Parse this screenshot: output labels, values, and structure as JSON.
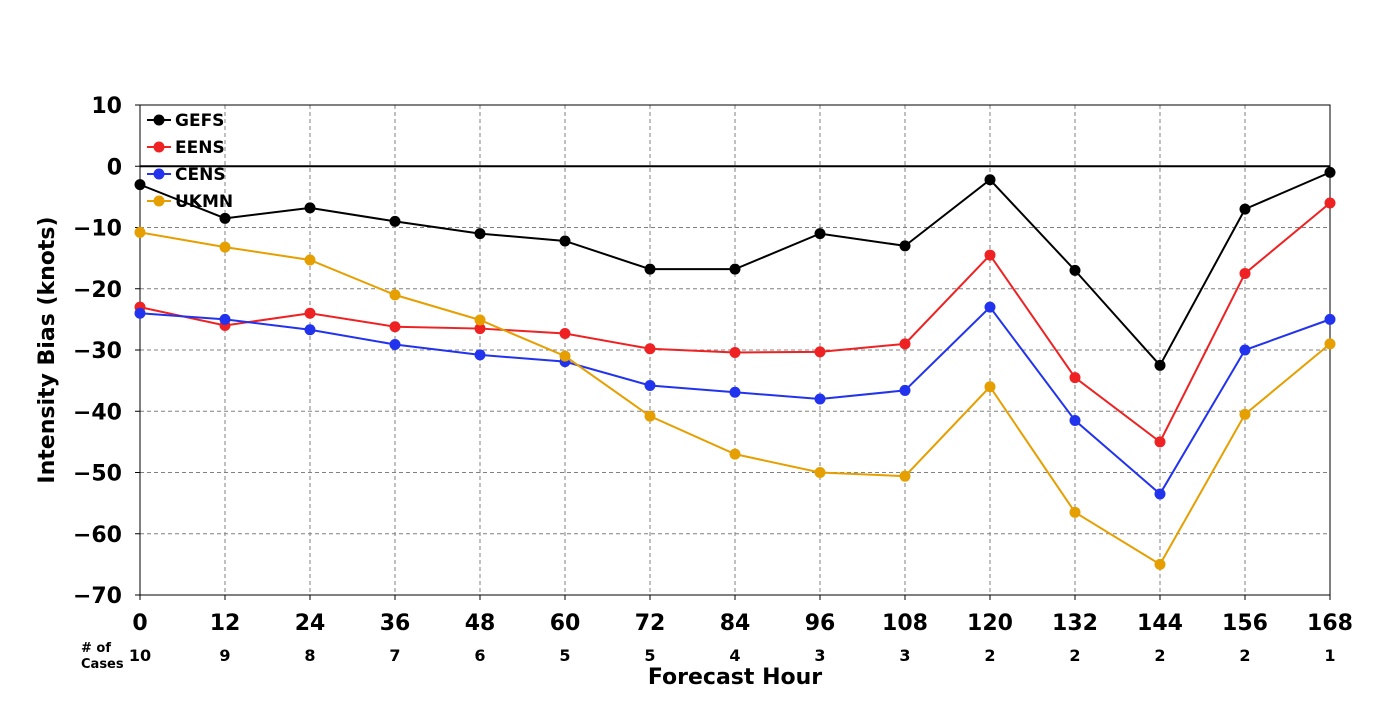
{
  "chart_data": {
    "type": "line",
    "xlabel": "Forecast Hour",
    "ylabel": "Intensity Bias (knots)",
    "x": [
      0,
      12,
      24,
      36,
      48,
      60,
      72,
      84,
      96,
      108,
      120,
      132,
      144,
      156,
      168
    ],
    "xlim": [
      0,
      168
    ],
    "ylim": [
      -70,
      10
    ],
    "yticks": [
      10,
      0,
      -10,
      -20,
      -30,
      -40,
      -50,
      -60,
      -70
    ],
    "ytick_labels": [
      "10",
      "0",
      "−10",
      "−20",
      "−30",
      "−40",
      "−50",
      "−60",
      "−70"
    ],
    "grid": true,
    "zero_line": true,
    "legend_position": "top-left",
    "cases_label_line1": "# of",
    "cases_label_line2": "Cases",
    "cases": [
      "10",
      "9",
      "8",
      "7",
      "6",
      "5",
      "5",
      "4",
      "3",
      "3",
      "2",
      "2",
      "2",
      "2",
      "1"
    ],
    "series": [
      {
        "name": "GEFS",
        "color": "#000000",
        "values": [
          -3,
          -8.5,
          -6.8,
          -9,
          -11,
          -12.2,
          -16.8,
          -16.8,
          -11,
          -13,
          -2.2,
          -17,
          -32.5,
          -7,
          -1
        ]
      },
      {
        "name": "EENS",
        "color": "#ee2222",
        "values": [
          -23,
          -26,
          -24,
          -26.2,
          -26.5,
          -27.3,
          -29.8,
          -30.4,
          -30.3,
          -29,
          -14.5,
          -34.5,
          -45,
          -17.5,
          -6
        ]
      },
      {
        "name": "CENS",
        "color": "#2233ee",
        "values": [
          -24,
          -25,
          -26.7,
          -29.1,
          -30.8,
          -31.9,
          -35.8,
          -36.9,
          -38,
          -36.6,
          -23,
          -41.5,
          -53.5,
          -30,
          -25
        ]
      },
      {
        "name": "UKMN",
        "color": "#e69f00",
        "values": [
          -10.8,
          -13.2,
          -15.3,
          -21,
          -25.1,
          -31,
          -40.8,
          -47,
          -50,
          -50.6,
          -36,
          -56.5,
          -65,
          -40.5,
          -29
        ]
      }
    ]
  }
}
